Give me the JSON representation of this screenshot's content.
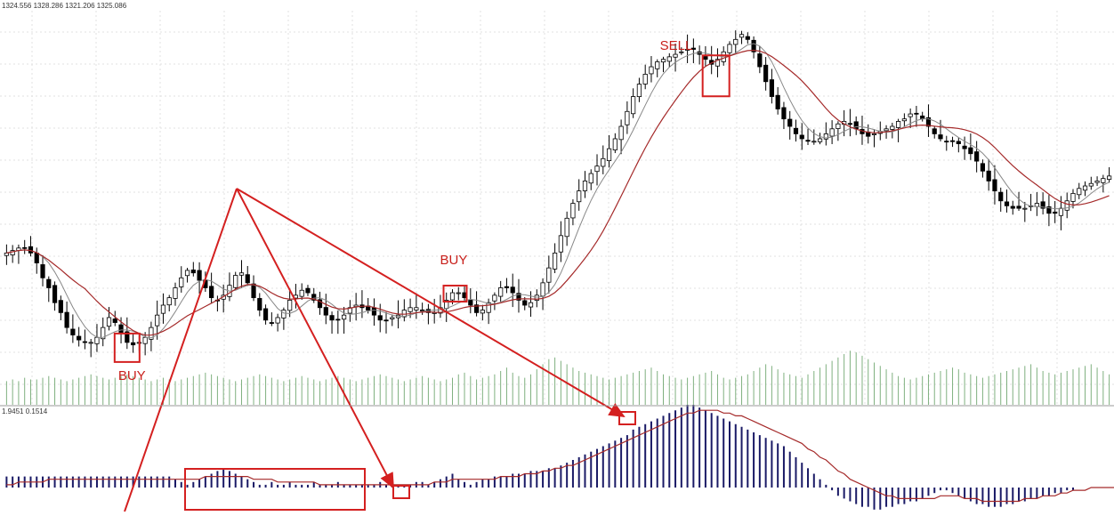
{
  "price_panel": {
    "ohlc_label": "1324.556 1328.286 1321.206 1325.086"
  },
  "macd_panel": {
    "values_label": "1.9451 0.1514"
  },
  "annotations": {
    "signals": [
      {
        "label": "BUY",
        "bar": 20
      },
      {
        "label": "BUY",
        "bar": 74
      },
      {
        "label": "SELL",
        "bar": 117
      }
    ]
  },
  "colors": {
    "bull": "#ffffff",
    "bear": "#000000",
    "fast_ma": "#888888",
    "slow_ma": "#a52a2a",
    "volume": "#7fb07f",
    "macd_hist": "#1a1a66",
    "macd_signal": "#a52a2a",
    "annotation": "#d42020",
    "grid": "#e2e2e2"
  },
  "chart_data": [
    {
      "type": "candlestick",
      "panel": "price",
      "overlays": [
        "fast moving average",
        "slow moving average"
      ],
      "grid": true,
      "close": [
        1300,
        1301,
        1302,
        1302,
        1300,
        1296,
        1290,
        1286,
        1280,
        1276,
        1270,
        1267,
        1265,
        1264,
        1264,
        1266,
        1270,
        1274,
        1272,
        1268,
        1264,
        1263,
        1264,
        1266,
        1270,
        1275,
        1279,
        1282,
        1286,
        1290,
        1293,
        1292,
        1289,
        1286,
        1282,
        1281,
        1283,
        1287,
        1291,
        1292,
        1288,
        1282,
        1277,
        1273,
        1272,
        1274,
        1277,
        1281,
        1283,
        1285,
        1284,
        1281,
        1278,
        1275,
        1273,
        1273,
        1275,
        1278,
        1279,
        1278,
        1277,
        1275,
        1273,
        1273,
        1274,
        1275,
        1277,
        1278,
        1278,
        1277,
        1276,
        1276,
        1278,
        1281,
        1284,
        1284,
        1282,
        1279,
        1276,
        1277,
        1280,
        1283,
        1286,
        1286,
        1284,
        1281,
        1279,
        1280,
        1283,
        1288,
        1294,
        1300,
        1307,
        1314,
        1320,
        1325,
        1329,
        1332,
        1335,
        1338,
        1342,
        1346,
        1351,
        1357,
        1363,
        1368,
        1372,
        1375,
        1377,
        1378,
        1379,
        1380,
        1381,
        1382,
        1382,
        1380,
        1378,
        1376,
        1378,
        1381,
        1384,
        1386,
        1388,
        1386,
        1381,
        1375,
        1369,
        1363,
        1358,
        1354,
        1351,
        1348,
        1346,
        1345,
        1345,
        1346,
        1348,
        1350,
        1352,
        1353,
        1352,
        1350,
        1348,
        1347,
        1348,
        1349,
        1350,
        1351,
        1353,
        1354,
        1356,
        1356,
        1354,
        1351,
        1348,
        1346,
        1345,
        1345,
        1344,
        1342,
        1340,
        1337,
        1333,
        1329,
        1325,
        1321,
        1319,
        1318,
        1318,
        1318,
        1319,
        1320,
        1318,
        1316,
        1316,
        1318,
        1321,
        1324,
        1326,
        1327,
        1328,
        1329,
        1330,
        1331
      ],
      "title": "",
      "xlabel": "",
      "ylabel": ""
    },
    {
      "type": "bar",
      "panel": "volume",
      "values": [
        14,
        15,
        14,
        16,
        15,
        15,
        16,
        17,
        16,
        15,
        14,
        15,
        16,
        17,
        18,
        17,
        16,
        15,
        16,
        17,
        18,
        17,
        16,
        15,
        14,
        15,
        16,
        15,
        14,
        15,
        16,
        17,
        18,
        19,
        18,
        17,
        16,
        15,
        14,
        15,
        16,
        17,
        18,
        17,
        16,
        15,
        14,
        15,
        16,
        17,
        16,
        15,
        14,
        15,
        16,
        17,
        16,
        15,
        14,
        15,
        16,
        17,
        18,
        17,
        16,
        15,
        14,
        15,
        16,
        17,
        16,
        15,
        14,
        15,
        16,
        18,
        19,
        17,
        15,
        16,
        17,
        18,
        20,
        22,
        19,
        17,
        16,
        18,
        21,
        24,
        27,
        28,
        26,
        24,
        22,
        20,
        19,
        18,
        17,
        16,
        15,
        16,
        17,
        18,
        19,
        20,
        21,
        22,
        20,
        18,
        17,
        16,
        15,
        16,
        17,
        18,
        19,
        20,
        18,
        16,
        15,
        16,
        17,
        18,
        20,
        22,
        24,
        23,
        21,
        19,
        18,
        17,
        16,
        18,
        20,
        22,
        24,
        26,
        28,
        30,
        32,
        31,
        29,
        27,
        25,
        23,
        21,
        19,
        17,
        16,
        15,
        16,
        17,
        18,
        19,
        20,
        21,
        22,
        21,
        19,
        18,
        17,
        16,
        17,
        18,
        19,
        20,
        21,
        22,
        23,
        24,
        22,
        20,
        19,
        18,
        19,
        20,
        21,
        22,
        23,
        24,
        22,
        20,
        18,
        17
      ]
    },
    {
      "type": "bar",
      "panel": "macd",
      "series": [
        {
          "values": [
            4,
            4,
            4,
            4,
            4,
            4,
            4,
            4,
            4,
            4,
            4,
            4,
            4,
            4,
            4,
            4,
            4,
            4,
            4,
            4,
            4,
            4,
            4,
            4,
            4,
            4,
            4,
            4,
            3,
            2,
            1,
            2,
            3,
            4,
            5,
            6,
            7,
            6,
            5,
            4,
            3,
            2,
            1,
            1,
            2,
            1,
            1,
            2,
            1,
            1,
            1,
            2,
            1,
            1,
            1,
            2,
            1,
            1,
            1,
            1,
            1,
            1,
            2,
            1,
            1,
            1,
            1,
            1,
            2,
            2,
            1,
            2,
            3,
            4,
            5,
            3,
            2,
            1,
            2,
            3,
            3,
            4,
            4,
            4,
            5,
            5,
            5,
            6,
            6,
            6,
            7,
            7,
            8,
            9,
            10,
            11,
            12,
            13,
            14,
            15,
            16,
            17,
            18,
            19,
            21,
            22,
            23,
            24,
            25,
            26,
            27,
            28,
            29,
            30,
            30,
            29,
            28,
            27,
            26,
            25,
            24,
            23,
            22,
            21,
            20,
            19,
            18,
            17,
            16,
            15,
            13,
            11,
            9,
            7,
            5,
            3,
            1,
            -1,
            -3,
            -4,
            -5,
            -6,
            -7,
            -7,
            -8,
            -8,
            -7,
            -7,
            -6,
            -6,
            -5,
            -5,
            -4,
            -3,
            -2,
            -1,
            -1,
            -2,
            -3,
            -4,
            -5,
            -6,
            -6,
            -7,
            -7,
            -7,
            -6,
            -6,
            -5,
            -5,
            -4,
            -4,
            -3,
            -3,
            -2,
            -2,
            -1,
            -1,
            0,
            0,
            0,
            0,
            0,
            0,
            0
          ]
        },
        {
          "values": [
            1,
            1,
            2,
            2,
            2,
            2,
            2,
            3,
            3,
            3,
            3,
            3,
            3,
            3,
            3,
            3,
            3,
            3,
            3,
            3,
            3,
            3,
            3,
            3,
            3,
            3,
            3,
            3,
            3,
            3,
            3,
            3,
            3,
            4,
            4,
            4,
            4,
            4,
            4,
            4,
            4,
            3,
            3,
            3,
            3,
            2,
            2,
            2,
            2,
            2,
            2,
            2,
            1,
            1,
            1,
            1,
            1,
            1,
            1,
            1,
            1,
            1,
            1,
            1,
            1,
            1,
            1,
            1,
            1,
            1,
            1,
            2,
            2,
            2,
            3,
            3,
            3,
            3,
            3,
            3,
            3,
            3,
            4,
            4,
            4,
            4,
            5,
            5,
            5,
            6,
            6,
            7,
            7,
            8,
            8,
            9,
            10,
            11,
            12,
            13,
            14,
            15,
            16,
            17,
            18,
            19,
            20,
            21,
            22,
            23,
            24,
            25,
            26,
            27,
            27,
            28,
            28,
            28,
            28,
            27,
            27,
            26,
            26,
            25,
            24,
            23,
            22,
            21,
            20,
            19,
            18,
            17,
            16,
            14,
            13,
            11,
            10,
            8,
            6,
            5,
            3,
            2,
            1,
            0,
            -1,
            -2,
            -3,
            -3,
            -4,
            -4,
            -4,
            -4,
            -4,
            -4,
            -4,
            -3,
            -3,
            -3,
            -3,
            -4,
            -4,
            -4,
            -5,
            -5,
            -5,
            -5,
            -5,
            -5,
            -5,
            -4,
            -4,
            -4,
            -3,
            -3,
            -3,
            -2,
            -2,
            -1,
            -1,
            -1,
            0,
            0,
            0,
            0,
            0
          ]
        }
      ]
    }
  ]
}
